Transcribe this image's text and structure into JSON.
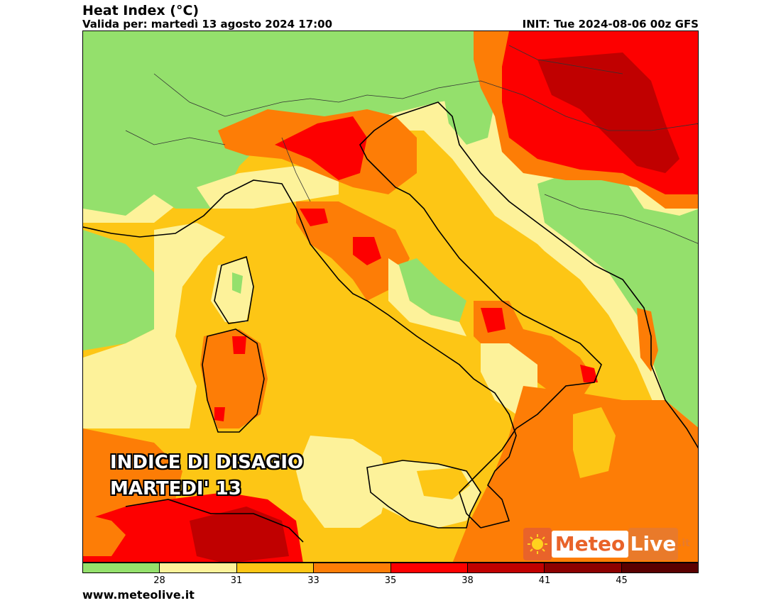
{
  "header": {
    "title": "Heat Index (°C)",
    "valid": "Valida per: martedì 13 agosto 2024 17:00",
    "init": "INIT: Tue 2024-08-06 00z GFS"
  },
  "overlay": {
    "line1": "INDICE DI DISAGIO",
    "line2": "MARTEDI' 13"
  },
  "logo": {
    "meteo": "Meteo",
    "live": "Live",
    "it": ".it"
  },
  "legend": {
    "colors": [
      "#94e06c",
      "#fdf29a",
      "#fdc615",
      "#fd7d06",
      "#fd0000",
      "#c00000",
      "#8c0000",
      "#5a0000"
    ],
    "ticks": [
      "28",
      "31",
      "33",
      "35",
      "38",
      "41",
      "45"
    ]
  },
  "footer": {
    "website": "www.meteolive.it"
  }
}
